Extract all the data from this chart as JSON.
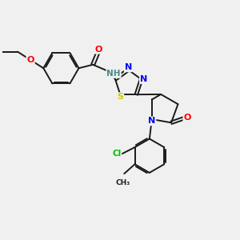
{
  "bg_color": "#f0f0f0",
  "bond_color": "#1a1a1a",
  "atom_colors": {
    "O": "#ff0000",
    "N": "#0000ff",
    "S": "#cccc00",
    "Cl": "#00bb00",
    "C": "#1a1a1a",
    "H": "#4a8a8a"
  },
  "font_size": 8.0,
  "lw": 1.4
}
